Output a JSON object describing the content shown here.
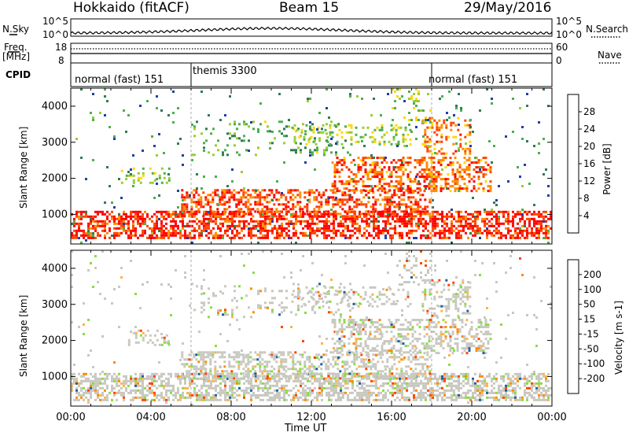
{
  "header": {
    "station": "Hokkaido (fitACF)",
    "beam": "Beam 15",
    "date": "29/May/2016"
  },
  "strip_labels": {
    "nsky": "N.Sky",
    "nsearch": "N.Search",
    "freq_line1": "Freq.",
    "freq_line2": "[MHz]",
    "nave": "Nave",
    "cpid": "CPID",
    "nsky_ticks": [
      "10^5",
      "10^0"
    ],
    "nsearch_ticks": [
      "10^5",
      "10^0"
    ],
    "freq_ticks": [
      "18",
      "8"
    ],
    "nave_ticks": [
      "60",
      "0"
    ]
  },
  "cpid_segments": [
    {
      "label": "normal (fast) 151",
      "start_hour": 0
    },
    {
      "label": "themis 3300",
      "start_hour": 6
    },
    {
      "label": "normal (fast) 151",
      "start_hour": 18
    }
  ],
  "colors": {
    "power": [
      "#0000ff",
      "#1f3fa8",
      "#2e7d4f",
      "#4caf50",
      "#9acd32",
      "#ffd700",
      "#ff8c00",
      "#ff4500",
      "#ff0000"
    ],
    "velocity": [
      "#ff0000",
      "#ff4500",
      "#ff8c00",
      "#ffb347",
      "#c8c8c0",
      "#88dd44",
      "#2e8b3e",
      "#1f5fa0",
      "#1a2a9a"
    ]
  },
  "chart_data": [
    {
      "type": "heatmap",
      "name": "power-panel",
      "xlabel": "",
      "ylabel": "Slant Range [km]",
      "xlim": [
        0,
        24
      ],
      "ylim": [
        180,
        4500
      ],
      "y_ticks": [
        1000,
        2000,
        3000,
        4000
      ],
      "x_ticks": [
        0,
        4,
        8,
        12,
        16,
        20,
        24
      ],
      "colorbar_label": "Power [dB]",
      "colorbar_ticks": [
        28,
        24,
        20,
        16,
        12,
        8,
        4
      ]
    },
    {
      "type": "heatmap",
      "name": "velocity-panel",
      "xlabel": "Time UT",
      "ylabel": "Slant Range [km]",
      "xlim": [
        0,
        24
      ],
      "ylim": [
        180,
        4500
      ],
      "y_ticks": [
        1000,
        2000,
        3000,
        4000
      ],
      "x_ticks": [
        "00:00",
        "04:00",
        "08:00",
        "12:00",
        "16:00",
        "20:00",
        "00:00"
      ],
      "colorbar_label": "Velocity [m s-1]",
      "colorbar_ticks": [
        "200",
        "100",
        "50",
        "15",
        "-15",
        "-50",
        "-100",
        "-200"
      ]
    }
  ]
}
